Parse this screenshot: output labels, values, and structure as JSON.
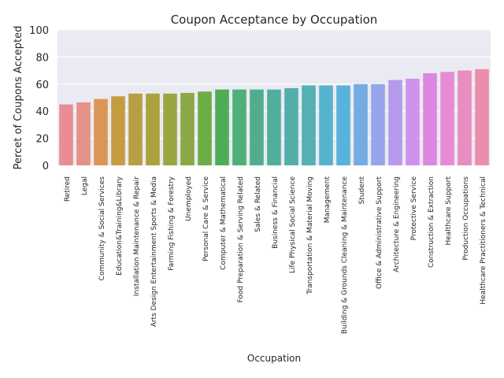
{
  "chart_data": {
    "type": "bar",
    "title": "Coupon Acceptance by Occupation",
    "xlabel": "Occupation",
    "ylabel": "Percet of Coupons Accepted",
    "ylim": [
      0,
      100
    ],
    "yticks": [
      0,
      20,
      40,
      60,
      80,
      100
    ],
    "grid": true,
    "background": "#EAEAF2",
    "categories": [
      "Retired",
      "Legal",
      "Community & Social Services",
      "Education&Training&Library",
      "Installation Maintenance & Repair",
      "Arts Design Entertainment Sports & Media",
      "Farming Fishing & Forestry",
      "Unemployed",
      "Personal Care & Service",
      "Computer & Mathematical",
      "Food Preparation & Serving Related",
      "Sales & Related",
      "Business & Financial",
      "Life Physical Social Science",
      "Transportation & Material Moving",
      "Management",
      "Building & Grounds Cleaning & Maintenance",
      "Student",
      "Office & Administrative Support",
      "Architecture & Engineering",
      "Protective Service",
      "Construction & Extraction",
      "Healthcare Support",
      "Production Occupations",
      "Healthcare Practitioners & Technical"
    ],
    "values": [
      45,
      46.5,
      49,
      51,
      53,
      53,
      53,
      53.5,
      54.5,
      56,
      56,
      56,
      56,
      57,
      59,
      59,
      59,
      60,
      60,
      63,
      64,
      68,
      69,
      70,
      71
    ],
    "colors": [
      "#E98C96",
      "#E49186",
      "#DB9657",
      "#C59D40",
      "#B89E45",
      "#AAA13F",
      "#9BA542",
      "#8AA944",
      "#6BAD47",
      "#4EAE56",
      "#4FAF79",
      "#50AE8E",
      "#51AE9C",
      "#51AEA9",
      "#53B0B5",
      "#55B3CC",
      "#59B2D9",
      "#75AAE3",
      "#98A4EB",
      "#B59AEC",
      "#CF92EC",
      "#DC87E2",
      "#E88BD5",
      "#E98CBF",
      "#EA8EAB"
    ]
  }
}
